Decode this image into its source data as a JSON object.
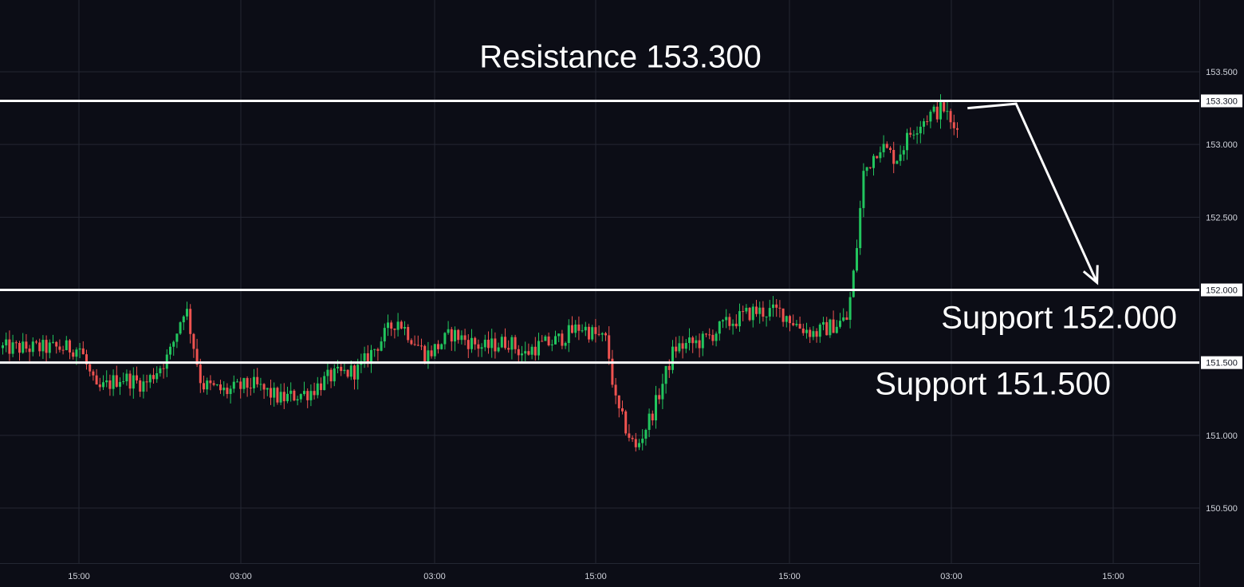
{
  "chart_data": {
    "type": "candlestick",
    "title": "",
    "xlabel": "",
    "ylabel": "",
    "x_ticks": [
      "15:00",
      "03:00",
      "03:00",
      "15:00",
      "15:00",
      "03:00",
      "15:00"
    ],
    "y_ticks": [
      "150.500",
      "151.000",
      "151.500",
      "152.000",
      "152.500",
      "153.000",
      "153.300",
      "153.500"
    ],
    "ylim": [
      150.1,
      153.9
    ],
    "grid": true,
    "price_axis": "right",
    "candle_colors": {
      "up": "#089981",
      "down": "#f23645",
      "up_visual": "#22c55e",
      "down_visual": "#ef5350"
    },
    "levels": [
      {
        "name": "Resistance",
        "value": 153.3,
        "label": "Resistance 153.300",
        "axis_label": "153.300"
      },
      {
        "name": "Support",
        "value": 152.0,
        "label": "Support 152.000",
        "axis_label": "152.000"
      },
      {
        "name": "Support",
        "value": 151.5,
        "label": "Support 151.500",
        "axis_label": "151.500"
      }
    ],
    "projection": {
      "description": "arrow",
      "points": [
        {
          "x_tick_index": 5.1,
          "y": 153.25
        },
        {
          "x_tick_index": 5.4,
          "y": 153.28
        },
        {
          "x_tick_index": 5.9,
          "y": 152.05
        }
      ]
    },
    "price_path": [
      {
        "t": 0.0,
        "y": 151.6
      },
      {
        "t": 0.1,
        "y": 151.3
      },
      {
        "t": 0.25,
        "y": 151.4
      },
      {
        "t": 0.4,
        "y": 151.35
      },
      {
        "t": 0.55,
        "y": 151.55
      },
      {
        "t": 0.65,
        "y": 151.9
      },
      {
        "t": 0.75,
        "y": 151.35
      },
      {
        "t": 0.9,
        "y": 151.3
      },
      {
        "t": 1.05,
        "y": 151.35
      },
      {
        "t": 1.2,
        "y": 151.25
      },
      {
        "t": 1.35,
        "y": 151.3
      },
      {
        "t": 1.45,
        "y": 151.4
      },
      {
        "t": 1.6,
        "y": 151.45
      },
      {
        "t": 1.8,
        "y": 151.8
      },
      {
        "t": 1.95,
        "y": 151.55
      },
      {
        "t": 2.1,
        "y": 151.7
      },
      {
        "t": 2.3,
        "y": 151.6
      },
      {
        "t": 2.45,
        "y": 151.65
      },
      {
        "t": 2.55,
        "y": 151.55
      },
      {
        "t": 2.6,
        "y": 151.6
      },
      {
        "t": 2.75,
        "y": 151.65
      },
      {
        "t": 2.9,
        "y": 151.75
      },
      {
        "t": 3.05,
        "y": 151.65
      },
      {
        "t": 3.1,
        "y": 151.2
      },
      {
        "t": 3.2,
        "y": 150.9
      },
      {
        "t": 3.3,
        "y": 151.2
      },
      {
        "t": 3.4,
        "y": 151.6
      },
      {
        "t": 3.55,
        "y": 151.65
      },
      {
        "t": 3.65,
        "y": 151.75
      },
      {
        "t": 3.8,
        "y": 151.85
      },
      {
        "t": 3.95,
        "y": 151.85
      },
      {
        "t": 4.05,
        "y": 151.75
      },
      {
        "t": 4.15,
        "y": 151.7
      },
      {
        "t": 4.25,
        "y": 151.75
      },
      {
        "t": 4.35,
        "y": 151.8
      },
      {
        "t": 4.4,
        "y": 152.2
      },
      {
        "t": 4.45,
        "y": 152.8
      },
      {
        "t": 4.55,
        "y": 153.0
      },
      {
        "t": 4.65,
        "y": 152.9
      },
      {
        "t": 4.75,
        "y": 153.1
      },
      {
        "t": 4.85,
        "y": 153.2
      },
      {
        "t": 4.95,
        "y": 153.25
      },
      {
        "t": 5.0,
        "y": 153.1
      },
      {
        "t": 5.05,
        "y": 153.2
      }
    ]
  },
  "colors": {
    "background": "#0c0d16",
    "grid": "#242733",
    "level_line": "#ffffff",
    "annotation_text": "#ffffff",
    "axis_text": "#d1d4dc"
  }
}
